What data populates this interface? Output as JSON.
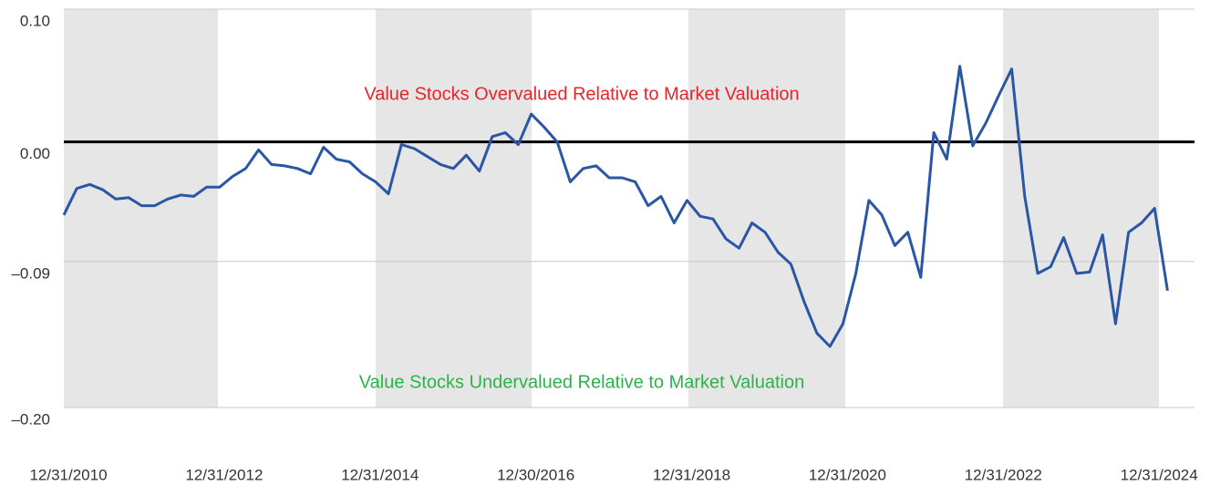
{
  "chart_data": {
    "type": "line",
    "categories": [
      "12/31/2010",
      null,
      null,
      null,
      null,
      null,
      null,
      null,
      null,
      null,
      null,
      null,
      "12/31/2012",
      null,
      null,
      null,
      null,
      null,
      null,
      null,
      null,
      null,
      null,
      null,
      "12/31/2014",
      null,
      null,
      null,
      null,
      null,
      null,
      null,
      null,
      null,
      null,
      null,
      "12/30/2016",
      null,
      null,
      null,
      null,
      null,
      null,
      null,
      null,
      null,
      null,
      null,
      "12/31/2018",
      null,
      null,
      null,
      null,
      null,
      null,
      null,
      null,
      null,
      null,
      null,
      "12/31/2020",
      null,
      null,
      null,
      null,
      null,
      null,
      null,
      null,
      null,
      null,
      null,
      "12/31/2022",
      null,
      null,
      null,
      null,
      null,
      null,
      null,
      null,
      null,
      null,
      null,
      "12/31/2024",
      null
    ],
    "series": [
      {
        "color": "#2a56a6",
        "values": [
          -0.055,
          -0.035,
          -0.032,
          -0.036,
          -0.043,
          -0.042,
          -0.048,
          -0.048,
          -0.043,
          -0.04,
          -0.041,
          -0.034,
          -0.034,
          -0.026,
          -0.02,
          -0.006,
          -0.017,
          -0.018,
          -0.02,
          -0.024,
          -0.004,
          -0.013,
          -0.015,
          -0.024,
          -0.03,
          -0.039,
          -0.002,
          -0.005,
          -0.011,
          -0.017,
          -0.02,
          -0.01,
          -0.022,
          0.004,
          0.007,
          -0.002,
          0.021,
          0.011,
          0.0,
          -0.03,
          -0.02,
          -0.018,
          -0.027,
          -0.027,
          -0.03,
          -0.048,
          -0.041,
          -0.061,
          -0.044,
          -0.056,
          -0.058,
          -0.073,
          -0.08,
          -0.061,
          -0.068,
          -0.083,
          -0.092,
          -0.12,
          -0.144,
          -0.154,
          -0.137,
          -0.099,
          -0.044,
          -0.055,
          -0.078,
          -0.068,
          -0.102,
          0.007,
          -0.013,
          0.057,
          -0.003,
          0.014,
          0.035,
          0.055,
          -0.041,
          -0.099,
          -0.094,
          -0.072,
          -0.099,
          -0.098,
          -0.07,
          -0.137,
          -0.068,
          -0.061,
          -0.05,
          -0.112
        ]
      }
    ],
    "ylim": [
      -0.2,
      0.1
    ],
    "yticks": [
      {
        "value": 0.1,
        "label": "0.10"
      },
      {
        "value": 0.0,
        "label": "0.00"
      },
      {
        "value": -0.09,
        "label": "–0.09"
      },
      {
        "value": -0.2,
        "label": "–0.20"
      }
    ],
    "grid": true,
    "annotations": [
      {
        "text": "Value Stocks Overvalued Relative to Market Valuation",
        "color": "#e8242b"
      },
      {
        "text": "Value Stocks Undervalued Relative to Market Valuation",
        "color": "#2bb34a"
      }
    ]
  }
}
